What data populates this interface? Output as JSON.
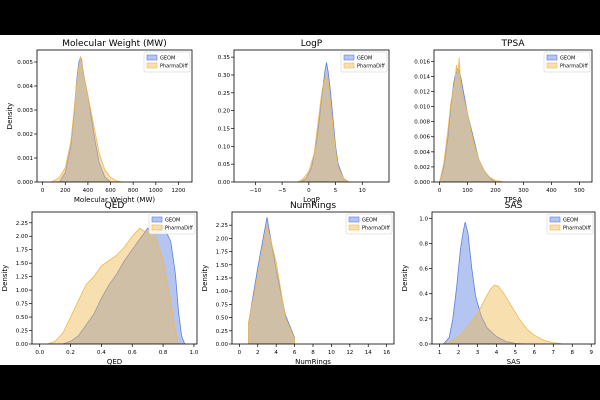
{
  "figure": {
    "legend_location": "upper right",
    "colors": {
      "GEOM": "#5b7fe0",
      "PharmaDiff": "#f0b84e",
      "overlap": "#c8b29a"
    }
  },
  "chart_data": [
    {
      "type": "area",
      "title": "Molecular Weight (MW)",
      "xlabel": "Molecular Weight (MW)",
      "ylabel": "Density",
      "xlim": [
        -50,
        1320
      ],
      "ylim": [
        0,
        0.0055
      ],
      "xticks": [
        0,
        200,
        400,
        600,
        800,
        1000,
        1200
      ],
      "xticklabels": [
        "0",
        "200",
        "400",
        "600",
        "800",
        "1000",
        "1200"
      ],
      "yticks": [
        0,
        0.001,
        0.002,
        0.003,
        0.004,
        0.005
      ],
      "yticklabels": [
        "0.000",
        "0.001",
        "0.002",
        "0.003",
        "0.004",
        "0.005"
      ],
      "legend": "upper right",
      "series": [
        {
          "name": "GEOM",
          "x": [
            150,
            200,
            250,
            280,
            300,
            320,
            335,
            345,
            355,
            370,
            400,
            430,
            460,
            500,
            550,
            600
          ],
          "y": [
            0,
            0.0004,
            0.0015,
            0.003,
            0.0042,
            0.005,
            0.0052,
            0.0051,
            0.0047,
            0.0043,
            0.0036,
            0.0027,
            0.0018,
            0.0008,
            0.0002,
            0
          ]
        },
        {
          "name": "PharmaDiff",
          "x": [
            80,
            150,
            200,
            250,
            280,
            300,
            320,
            335,
            345,
            360,
            400,
            450,
            500,
            550,
            600,
            650,
            700
          ],
          "y": [
            0,
            0.0002,
            0.0006,
            0.0017,
            0.0031,
            0.0041,
            0.0048,
            0.0052,
            0.005,
            0.0045,
            0.0036,
            0.0024,
            0.0012,
            0.0005,
            0.0002,
            5e-05,
            0
          ]
        }
      ]
    },
    {
      "type": "area",
      "title": "LogP",
      "xlabel": "LogP",
      "ylabel": "",
      "xlim": [
        -14,
        15
      ],
      "ylim": [
        0,
        0.37
      ],
      "xticks": [
        -10,
        -5,
        0,
        5,
        10
      ],
      "xticklabels": [
        "−10",
        "−5",
        "0",
        "5",
        "10"
      ],
      "yticks": [
        0,
        0.05,
        0.1,
        0.15,
        0.2,
        0.25,
        0.3,
        0.35
      ],
      "yticklabels": [
        "0.00",
        "0.05",
        "0.10",
        "0.15",
        "0.20",
        "0.25",
        "0.30",
        "0.35"
      ],
      "legend": "upper right",
      "series": [
        {
          "name": "GEOM",
          "x": [
            -1.5,
            -0.5,
            0.5,
            1.5,
            2.0,
            2.5,
            3.0,
            3.3,
            3.6,
            4.0,
            4.5,
            5.0,
            5.5,
            6.5,
            7.5
          ],
          "y": [
            0,
            0.01,
            0.04,
            0.12,
            0.18,
            0.25,
            0.31,
            0.335,
            0.31,
            0.26,
            0.18,
            0.1,
            0.05,
            0.01,
            0
          ]
        },
        {
          "name": "PharmaDiff",
          "x": [
            -2.0,
            -1.0,
            0.0,
            1.0,
            1.5,
            2.0,
            2.5,
            3.0,
            3.3,
            3.6,
            4.0,
            4.5,
            5.0,
            5.5,
            6.5,
            7.5
          ],
          "y": [
            0,
            0.01,
            0.03,
            0.08,
            0.14,
            0.2,
            0.26,
            0.29,
            0.3,
            0.28,
            0.23,
            0.16,
            0.09,
            0.04,
            0.01,
            0
          ]
        }
      ]
    },
    {
      "type": "area",
      "title": "TPSA",
      "xlabel": "TPSA",
      "ylabel": "",
      "xlim": [
        -20,
        545
      ],
      "ylim": [
        0,
        0.0175
      ],
      "xticks": [
        0,
        100,
        200,
        300,
        400,
        500
      ],
      "xticklabels": [
        "0",
        "100",
        "200",
        "300",
        "400",
        "500"
      ],
      "yticks": [
        0,
        0.002,
        0.004,
        0.006,
        0.008,
        0.01,
        0.012,
        0.014,
        0.016
      ],
      "yticklabels": [
        "0.000",
        "0.002",
        "0.004",
        "0.006",
        "0.008",
        "0.010",
        "0.012",
        "0.014",
        "0.016"
      ],
      "legend": "upper right",
      "series": [
        {
          "name": "GEOM",
          "x": [
            0,
            15,
            30,
            40,
            50,
            55,
            60,
            65,
            70,
            75,
            80,
            90,
            100,
            120,
            140,
            160,
            180,
            200
          ],
          "y": [
            0,
            0.002,
            0.006,
            0.01,
            0.013,
            0.014,
            0.0145,
            0.015,
            0.0148,
            0.014,
            0.013,
            0.011,
            0.009,
            0.006,
            0.003,
            0.0015,
            0.0005,
            0
          ]
        },
        {
          "name": "PharmaDiff",
          "x": [
            0,
            15,
            30,
            40,
            50,
            55,
            60,
            65,
            70,
            75,
            80,
            90,
            100,
            120,
            140,
            160,
            180,
            200,
            230
          ],
          "y": [
            0,
            0.0025,
            0.007,
            0.0105,
            0.0125,
            0.0135,
            0.0155,
            0.0142,
            0.0165,
            0.013,
            0.012,
            0.0105,
            0.009,
            0.0055,
            0.003,
            0.0015,
            0.0006,
            0.0002,
            0
          ]
        }
      ]
    },
    {
      "type": "area",
      "title": "QED",
      "xlabel": "QED",
      "ylabel": "Density",
      "xlim": [
        -0.05,
        1.02
      ],
      "ylim": [
        0,
        2.45
      ],
      "xticks": [
        0,
        0.2,
        0.4,
        0.6,
        0.8,
        1.0
      ],
      "xticklabels": [
        "0.0",
        "0.2",
        "0.4",
        "0.6",
        "0.8",
        "1.0"
      ],
      "yticks": [
        0,
        0.25,
        0.5,
        0.75,
        1.0,
        1.25,
        1.5,
        1.75,
        2.0,
        2.25
      ],
      "yticklabels": [
        "0.00",
        "0.25",
        "0.50",
        "0.75",
        "1.00",
        "1.25",
        "1.50",
        "1.75",
        "2.00",
        "2.25"
      ],
      "legend": "upper right",
      "series": [
        {
          "name": "GEOM",
          "x": [
            0.15,
            0.2,
            0.25,
            0.3,
            0.35,
            0.4,
            0.45,
            0.5,
            0.55,
            0.6,
            0.65,
            0.7,
            0.75,
            0.8,
            0.85,
            0.88,
            0.9,
            0.92,
            0.94
          ],
          "y": [
            0,
            0.05,
            0.15,
            0.35,
            0.55,
            0.85,
            1.1,
            1.3,
            1.55,
            1.75,
            1.95,
            2.15,
            2.05,
            2.2,
            1.9,
            1.3,
            0.6,
            0.15,
            0
          ]
        },
        {
          "name": "PharmaDiff",
          "x": [
            0.05,
            0.1,
            0.15,
            0.2,
            0.25,
            0.3,
            0.35,
            0.4,
            0.45,
            0.5,
            0.55,
            0.6,
            0.65,
            0.7,
            0.72,
            0.75,
            0.8,
            0.85,
            0.88,
            0.9
          ],
          "y": [
            0,
            0.05,
            0.2,
            0.5,
            0.8,
            1.1,
            1.25,
            1.45,
            1.55,
            1.65,
            1.8,
            2.0,
            2.15,
            2.05,
            2.25,
            2.0,
            1.55,
            0.8,
            0.25,
            0
          ]
        }
      ]
    },
    {
      "type": "area",
      "title": "NumRings",
      "xlabel": "NumRings",
      "ylabel": "Density",
      "xlim": [
        -0.8,
        16.8
      ],
      "ylim": [
        0,
        2.5
      ],
      "xticks": [
        0,
        2,
        4,
        6,
        8,
        10,
        12,
        14,
        16
      ],
      "xticklabels": [
        "0",
        "2",
        "4",
        "6",
        "8",
        "10",
        "12",
        "14",
        "16"
      ],
      "yticks": [
        0,
        0.25,
        0.5,
        0.75,
        1.0,
        1.25,
        1.5,
        1.75,
        2.0,
        2.25
      ],
      "yticklabels": [
        "0.00",
        "0.25",
        "0.50",
        "0.75",
        "1.00",
        "1.25",
        "1.50",
        "1.75",
        "2.00",
        "2.25"
      ],
      "legend": "upper right",
      "series": [
        {
          "name": "GEOM",
          "x": [
            1,
            2,
            3,
            4,
            5,
            6
          ],
          "y": [
            0.4,
            1.45,
            2.4,
            1.4,
            0.55,
            0.12
          ]
        },
        {
          "name": "PharmaDiff",
          "x": [
            1,
            2,
            3,
            4,
            5,
            6
          ],
          "y": [
            0.42,
            1.3,
            2.25,
            1.55,
            0.5,
            0.1
          ]
        }
      ]
    },
    {
      "type": "area",
      "title": "SAS",
      "xlabel": "SAS",
      "ylabel": "Density",
      "xlim": [
        0.6,
        9.2
      ],
      "ylim": [
        0,
        1.05
      ],
      "xticks": [
        1,
        2,
        3,
        4,
        5,
        6,
        7,
        8,
        9
      ],
      "xticklabels": [
        "1",
        "2",
        "3",
        "4",
        "5",
        "6",
        "7",
        "8",
        "9"
      ],
      "yticks": [
        0,
        0.2,
        0.4,
        0.6,
        0.8,
        1.0
      ],
      "yticklabels": [
        "0.0",
        "0.2",
        "0.4",
        "0.6",
        "0.8",
        "1.0"
      ],
      "legend": "upper right",
      "series": [
        {
          "name": "GEOM",
          "x": [
            1.2,
            1.5,
            1.7,
            1.9,
            2.1,
            2.25,
            2.35,
            2.5,
            2.7,
            2.9,
            3.2,
            3.5,
            4.0,
            4.5,
            5.0,
            5.5
          ],
          "y": [
            0,
            0.05,
            0.2,
            0.45,
            0.75,
            0.9,
            0.97,
            0.88,
            0.6,
            0.38,
            0.22,
            0.13,
            0.06,
            0.02,
            0.005,
            0
          ]
        },
        {
          "name": "PharmaDiff",
          "x": [
            1.2,
            1.6,
            2.0,
            2.4,
            2.8,
            3.1,
            3.4,
            3.7,
            3.9,
            4.1,
            4.4,
            4.8,
            5.2,
            5.6,
            6.0,
            6.5,
            7.0,
            7.5
          ],
          "y": [
            0,
            0.02,
            0.06,
            0.12,
            0.2,
            0.27,
            0.36,
            0.44,
            0.47,
            0.46,
            0.4,
            0.3,
            0.2,
            0.12,
            0.07,
            0.03,
            0.01,
            0
          ]
        }
      ]
    }
  ]
}
